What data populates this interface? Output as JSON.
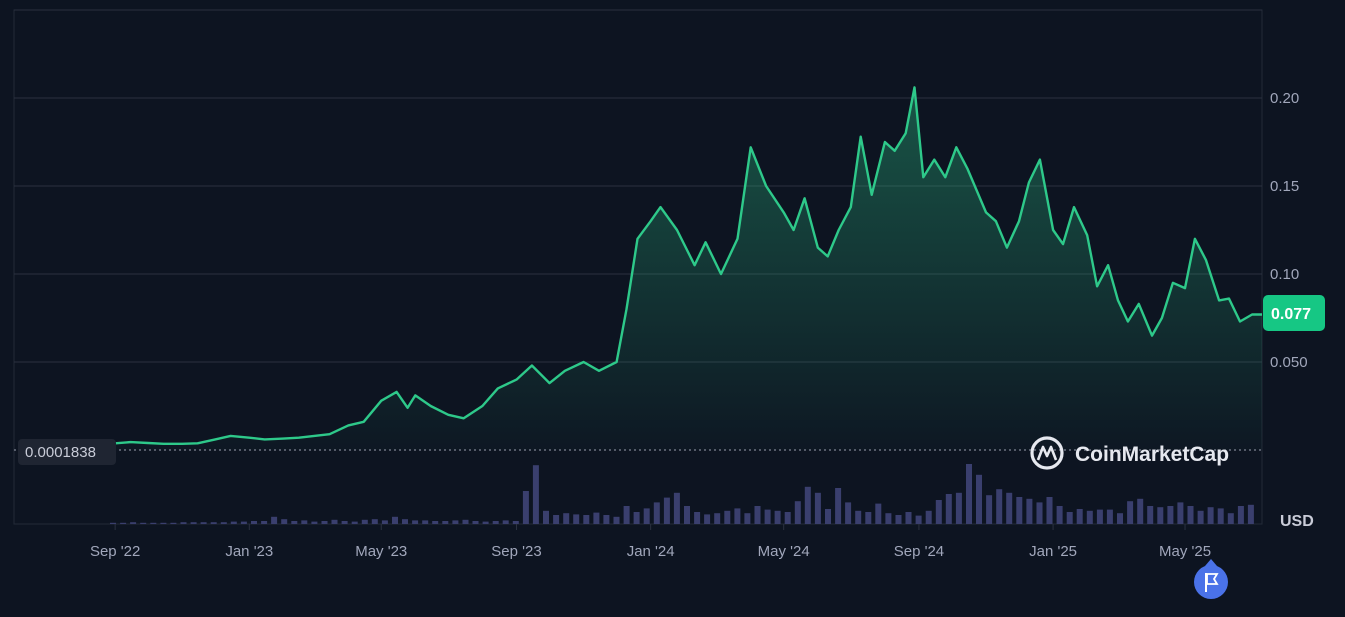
{
  "chart_data": {
    "type": "area",
    "currency": "USD",
    "current_price": "0.077",
    "baseline_price": "0.0001838",
    "watermark": "CoinMarketCap",
    "y_ticks": [
      "0.050",
      "0.10",
      "0.15",
      "0.20"
    ],
    "ylim": [
      0,
      0.25
    ],
    "x_ticks": [
      {
        "label": "Sep '22",
        "date": "2022-09-01"
      },
      {
        "label": "Jan '23",
        "date": "2023-01-01"
      },
      {
        "label": "May '23",
        "date": "2023-05-01"
      },
      {
        "label": "Sep '23",
        "date": "2023-09-01"
      },
      {
        "label": "Jan '24",
        "date": "2024-01-01"
      },
      {
        "label": "May '24",
        "date": "2024-05-01"
      },
      {
        "label": "Sep '24",
        "date": "2024-09-01"
      },
      {
        "label": "Jan '25",
        "date": "2025-01-01"
      },
      {
        "label": "May '25",
        "date": "2025-05-01"
      }
    ],
    "xlim": [
      "2022-06-01",
      "2025-07-10"
    ],
    "grid": true,
    "colors": {
      "line": "#2ec98a",
      "badge": "#16c784",
      "volume": "#3a3f6e",
      "background": "#0d1421",
      "flag": "#4a72e8"
    },
    "icons": [
      "coinmarketcap-logo-icon",
      "flag-icon"
    ],
    "series": [
      {
        "values": [
          [
            "2022-08-01",
            0.0025
          ],
          [
            "2022-08-15",
            0.003
          ],
          [
            "2022-09-01",
            0.0038
          ],
          [
            "2022-09-15",
            0.0045
          ],
          [
            "2022-10-01",
            0.004
          ],
          [
            "2022-10-15",
            0.0035
          ],
          [
            "2022-11-01",
            0.0035
          ],
          [
            "2022-11-15",
            0.0038
          ],
          [
            "2022-12-01",
            0.006
          ],
          [
            "2022-12-15",
            0.008
          ],
          [
            "2023-01-01",
            0.007
          ],
          [
            "2023-01-15",
            0.006
          ],
          [
            "2023-02-01",
            0.0065
          ],
          [
            "2023-02-15",
            0.007
          ],
          [
            "2023-03-01",
            0.008
          ],
          [
            "2023-03-15",
            0.009
          ],
          [
            "2023-04-01",
            0.014
          ],
          [
            "2023-04-15",
            0.016
          ],
          [
            "2023-05-01",
            0.028
          ],
          [
            "2023-05-15",
            0.033
          ],
          [
            "2023-05-25",
            0.024
          ],
          [
            "2023-06-01",
            0.031
          ],
          [
            "2023-06-15",
            0.025
          ],
          [
            "2023-07-01",
            0.02
          ],
          [
            "2023-07-15",
            0.018
          ],
          [
            "2023-08-01",
            0.025
          ],
          [
            "2023-08-15",
            0.035
          ],
          [
            "2023-09-01",
            0.04
          ],
          [
            "2023-09-15",
            0.048
          ],
          [
            "2023-10-01",
            0.038
          ],
          [
            "2023-10-15",
            0.045
          ],
          [
            "2023-11-01",
            0.05
          ],
          [
            "2023-11-15",
            0.045
          ],
          [
            "2023-12-01",
            0.05
          ],
          [
            "2023-12-10",
            0.08
          ],
          [
            "2023-12-20",
            0.12
          ],
          [
            "2024-01-01",
            0.13
          ],
          [
            "2024-01-10",
            0.138
          ],
          [
            "2024-01-25",
            0.125
          ],
          [
            "2024-02-10",
            0.105
          ],
          [
            "2024-02-20",
            0.118
          ],
          [
            "2024-03-05",
            0.1
          ],
          [
            "2024-03-20",
            0.12
          ],
          [
            "2024-04-01",
            0.172
          ],
          [
            "2024-04-15",
            0.15
          ],
          [
            "2024-05-01",
            0.135
          ],
          [
            "2024-05-10",
            0.125
          ],
          [
            "2024-05-20",
            0.143
          ],
          [
            "2024-06-01",
            0.115
          ],
          [
            "2024-06-10",
            0.11
          ],
          [
            "2024-06-20",
            0.125
          ],
          [
            "2024-07-01",
            0.138
          ],
          [
            "2024-07-10",
            0.178
          ],
          [
            "2024-07-20",
            0.145
          ],
          [
            "2024-08-01",
            0.175
          ],
          [
            "2024-08-10",
            0.17
          ],
          [
            "2024-08-20",
            0.18
          ],
          [
            "2024-08-28",
            0.206
          ],
          [
            "2024-09-05",
            0.155
          ],
          [
            "2024-09-15",
            0.165
          ],
          [
            "2024-09-25",
            0.155
          ],
          [
            "2024-10-05",
            0.172
          ],
          [
            "2024-10-15",
            0.16
          ],
          [
            "2024-11-01",
            0.135
          ],
          [
            "2024-11-10",
            0.13
          ],
          [
            "2024-11-20",
            0.115
          ],
          [
            "2024-12-01",
            0.13
          ],
          [
            "2024-12-10",
            0.152
          ],
          [
            "2024-12-20",
            0.165
          ],
          [
            "2025-01-01",
            0.125
          ],
          [
            "2025-01-10",
            0.117
          ],
          [
            "2025-01-20",
            0.138
          ],
          [
            "2025-02-01",
            0.122
          ],
          [
            "2025-02-10",
            0.093
          ],
          [
            "2025-02-20",
            0.105
          ],
          [
            "2025-03-01",
            0.085
          ],
          [
            "2025-03-10",
            0.073
          ],
          [
            "2025-03-20",
            0.083
          ],
          [
            "2025-04-01",
            0.065
          ],
          [
            "2025-04-10",
            0.075
          ],
          [
            "2025-04-20",
            0.095
          ],
          [
            "2025-05-01",
            0.092
          ],
          [
            "2025-05-10",
            0.12
          ],
          [
            "2025-05-20",
            0.108
          ],
          [
            "2025-06-01",
            0.085
          ],
          [
            "2025-06-10",
            0.086
          ],
          [
            "2025-06-20",
            0.073
          ],
          [
            "2025-07-01",
            0.077
          ],
          [
            "2025-07-10",
            0.077
          ]
        ]
      }
    ],
    "volume": [
      0.02,
      0.02,
      0.03,
      0.02,
      0.02,
      0.02,
      0.02,
      0.03,
      0.03,
      0.03,
      0.03,
      0.03,
      0.04,
      0.04,
      0.05,
      0.05,
      0.12,
      0.08,
      0.05,
      0.06,
      0.04,
      0.05,
      0.07,
      0.05,
      0.04,
      0.07,
      0.08,
      0.06,
      0.12,
      0.08,
      0.06,
      0.06,
      0.05,
      0.05,
      0.06,
      0.07,
      0.05,
      0.04,
      0.05,
      0.06,
      0.05,
      0.55,
      0.98,
      0.22,
      0.15,
      0.18,
      0.16,
      0.15,
      0.19,
      0.15,
      0.12,
      0.3,
      0.2,
      0.26,
      0.36,
      0.44,
      0.52,
      0.3,
      0.2,
      0.16,
      0.18,
      0.22,
      0.26,
      0.18,
      0.3,
      0.24,
      0.22,
      0.2,
      0.38,
      0.62,
      0.52,
      0.25,
      0.6,
      0.36,
      0.22,
      0.2,
      0.34,
      0.18,
      0.15,
      0.2,
      0.14,
      0.22,
      0.4,
      0.5,
      0.52,
      1.0,
      0.82,
      0.48,
      0.58,
      0.52,
      0.45,
      0.42,
      0.36,
      0.45,
      0.3,
      0.2,
      0.25,
      0.22,
      0.24,
      0.24,
      0.18,
      0.38,
      0.42,
      0.3,
      0.28,
      0.3,
      0.36,
      0.3,
      0.22,
      0.28,
      0.26,
      0.18,
      0.3,
      0.32
    ]
  }
}
